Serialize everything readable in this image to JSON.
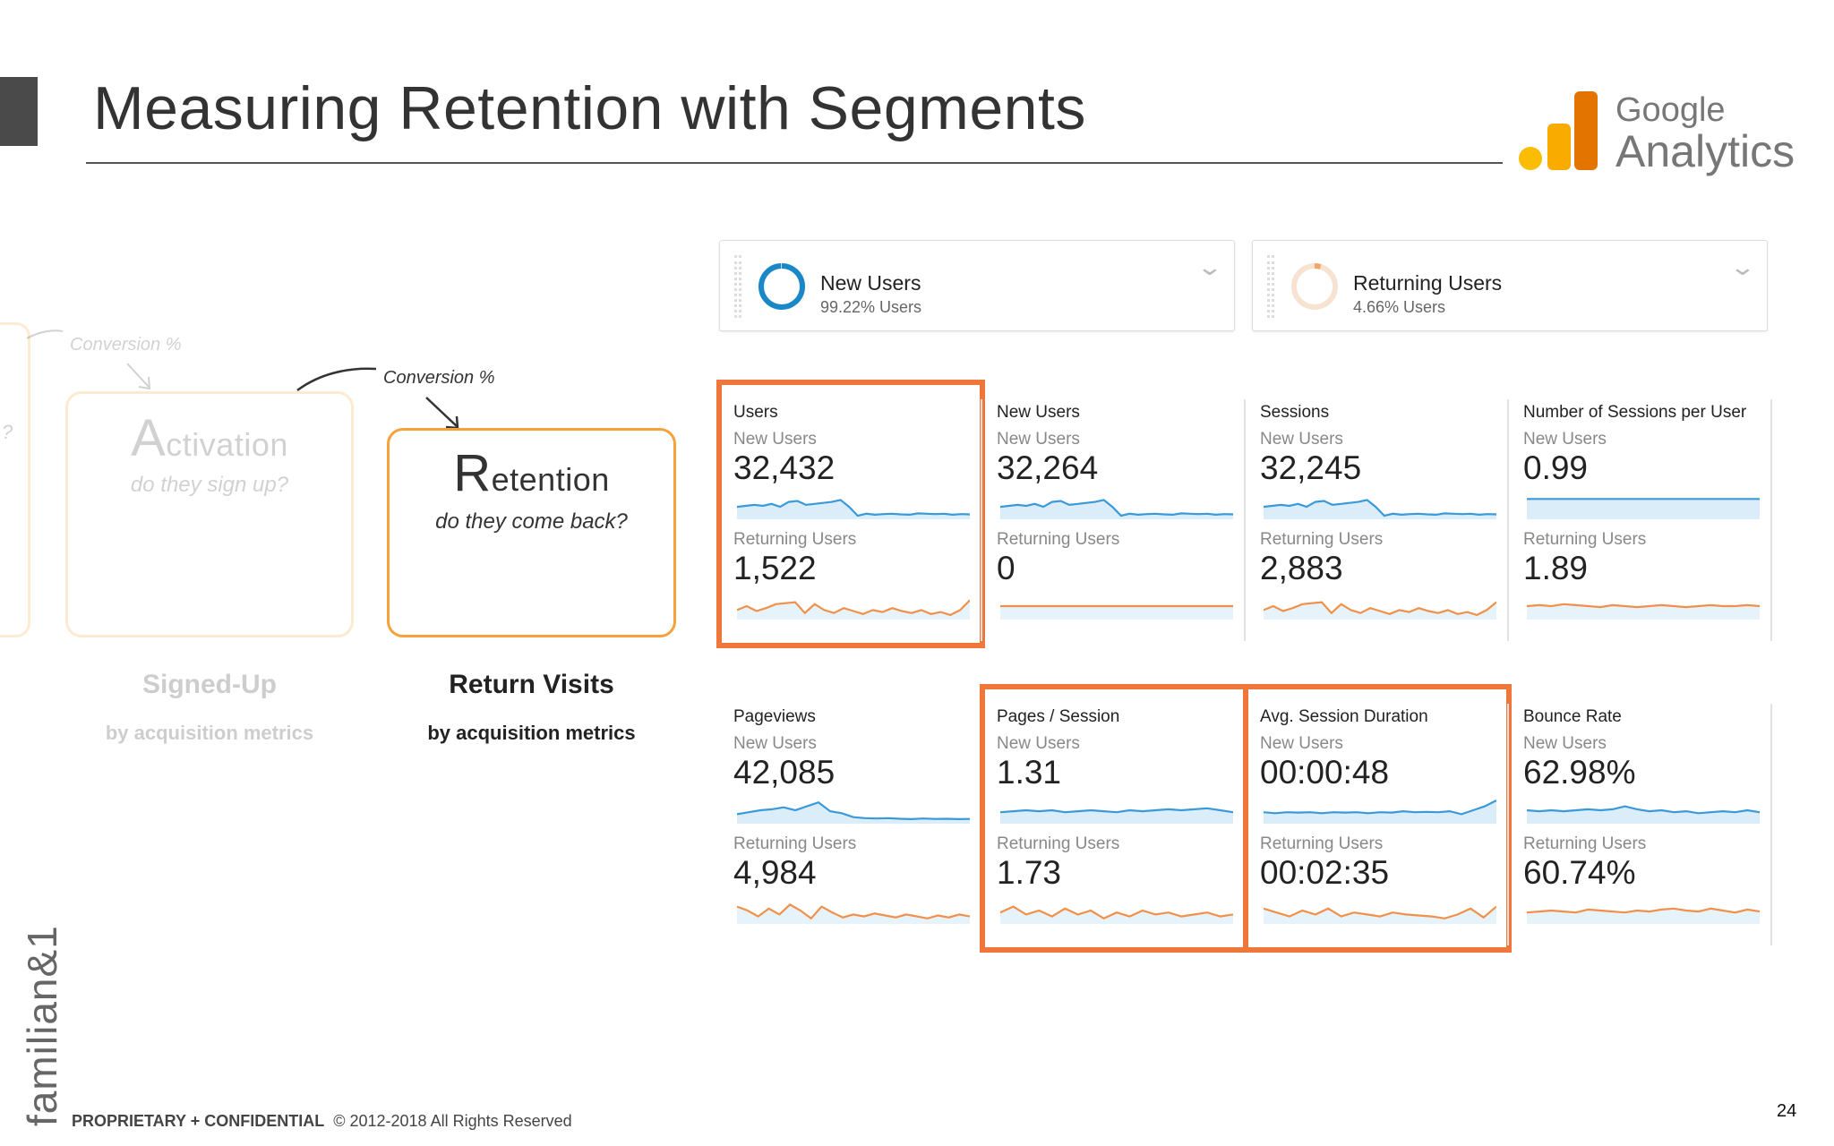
{
  "slide": {
    "title": "Measuring Retention with Segments",
    "page_number": "24",
    "accent_color": "#4a4a4a"
  },
  "brand": {
    "vertical_name": "familian&1",
    "footer_bold": "PROPRIETARY + CONFIDENTIAL",
    "footer_copyright": "© 2012-2018 All Rights Reserved"
  },
  "ga_logo": {
    "word_1": "Google",
    "word_2": "Analytics",
    "colors": [
      "#fbbc04",
      "#f9ab00",
      "#e37400"
    ],
    "icon": "google-analytics-logo"
  },
  "funnel": {
    "left_edge_mark": "?",
    "conversion_label_1": "Conversion %",
    "conversion_label_2": "Conversion %",
    "activation": {
      "title_initial": "A",
      "title_rest": "ctivation",
      "subtitle": "do they sign up?",
      "stage_label": "Signed-Up",
      "stage_sub": "by acquisition metrics"
    },
    "retention": {
      "title_initial": "R",
      "title_rest": "etention",
      "subtitle": "do they come back?",
      "stage_label": "Return Visits",
      "stage_sub": "by acquisition metrics"
    },
    "box_color": "#f5a23a"
  },
  "segments": [
    {
      "name": "New Users",
      "detail": "99.22% Users",
      "ring_color": "#1a87c9",
      "ring_fill": 0.9922,
      "icon": "chevron-down-icon"
    },
    {
      "name": "Returning Users",
      "detail": "4.66% Users",
      "ring_color": "#f0a86a",
      "ring_fill": 0.0466,
      "icon": "chevron-down-icon"
    }
  ],
  "series_colors": {
    "new_users": "#3a9ad9",
    "returning_users": "#f0904a",
    "highlight": "#f0773c"
  },
  "metrics": [
    {
      "title": "Users",
      "new_label": "New Users",
      "new_value": "32,432",
      "ret_label": "Returning Users",
      "ret_value": "1,522",
      "highlighted": true
    },
    {
      "title": "New Users",
      "new_label": "New Users",
      "new_value": "32,264",
      "ret_label": "Returning Users",
      "ret_value": "0",
      "highlighted": false
    },
    {
      "title": "Sessions",
      "new_label": "New Users",
      "new_value": "32,245",
      "ret_label": "Returning Users",
      "ret_value": "2,883",
      "highlighted": false
    },
    {
      "title": "Number of Sessions per User",
      "new_label": "New Users",
      "new_value": "0.99",
      "ret_label": "Returning Users",
      "ret_value": "1.89",
      "highlighted": false
    },
    {
      "title": "Pageviews",
      "new_label": "New Users",
      "new_value": "42,085",
      "ret_label": "Returning Users",
      "ret_value": "4,984",
      "highlighted": false
    },
    {
      "title": "Pages / Session",
      "new_label": "New Users",
      "new_value": "1.31",
      "ret_label": "Returning Users",
      "ret_value": "1.73",
      "highlighted": true
    },
    {
      "title": "Avg. Session Duration",
      "new_label": "New Users",
      "new_value": "00:00:48",
      "ret_label": "Returning Users",
      "ret_value": "00:02:35",
      "highlighted": true
    },
    {
      "title": "Bounce Rate",
      "new_label": "New Users",
      "new_value": "62.98%",
      "ret_label": "Returning Users",
      "ret_value": "60.74%",
      "highlighted": false
    }
  ]
}
